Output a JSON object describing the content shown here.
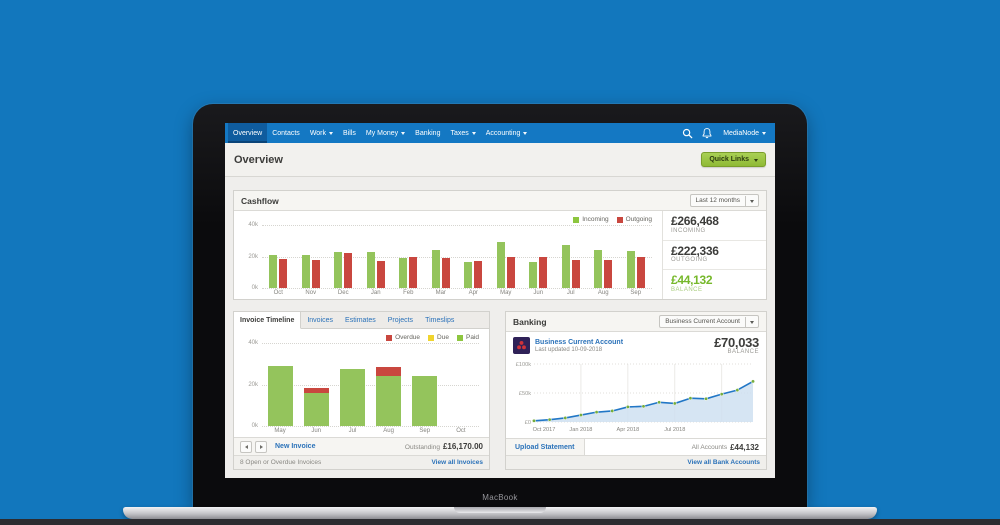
{
  "device": {
    "label": "MacBook"
  },
  "nav": {
    "items": [
      {
        "label": "Overview",
        "active": true
      },
      {
        "label": "Contacts"
      },
      {
        "label": "Work",
        "caret": true
      },
      {
        "label": "Bills"
      },
      {
        "label": "My Money",
        "caret": true
      },
      {
        "label": "Banking"
      },
      {
        "label": "Taxes",
        "caret": true
      },
      {
        "label": "Accounting",
        "caret": true
      }
    ],
    "account_menu": "MediaNode"
  },
  "page": {
    "title": "Overview",
    "quick_links_label": "Quick Links"
  },
  "cashflow": {
    "title": "Cashflow",
    "period_selector": "Last 12 months",
    "legend": [
      {
        "label": "Incoming",
        "color": "#8dc63f"
      },
      {
        "label": "Outgoing",
        "color": "#c9473f"
      }
    ],
    "summary": [
      {
        "value": "£266,468",
        "label": "INCOMING",
        "color": "#3c3c3a"
      },
      {
        "value": "£222,336",
        "label": "OUTGOING",
        "color": "#3c3c3a"
      },
      {
        "value": "£44,132",
        "label": "BALANCE",
        "color": "#76b82a"
      }
    ]
  },
  "invoice_panel": {
    "tabs": [
      {
        "label": "Invoice Timeline",
        "active": true
      },
      {
        "label": "Invoices"
      },
      {
        "label": "Estimates"
      },
      {
        "label": "Projects"
      },
      {
        "label": "Timeslips"
      }
    ],
    "legend": [
      {
        "label": "Overdue",
        "color": "#c9473f"
      },
      {
        "label": "Due",
        "color": "#f0d42e"
      },
      {
        "label": "Paid",
        "color": "#8dc63f"
      }
    ],
    "new_invoice_label": "New Invoice",
    "outstanding_label": "Outstanding",
    "outstanding_value": "£16,170.00",
    "footnote": "8 Open or Overdue Invoices",
    "view_all": "View all Invoices"
  },
  "banking": {
    "title": "Banking",
    "account_selector": "Business Current Account",
    "account_name": "Business Current Account",
    "last_updated": "Last updated 10-09-2018",
    "balance_value": "£70,033",
    "balance_label": "BALANCE",
    "upload_label": "Upload Statement",
    "all_accounts_label": "All Accounts",
    "all_accounts_value": "£44,132",
    "view_all": "View all Bank Accounts"
  },
  "chart_data": [
    {
      "id": "cashflow",
      "type": "bar",
      "title": "Cashflow (Last 12 months)",
      "categories": [
        "Oct",
        "Nov",
        "Dec",
        "Jan",
        "Feb",
        "Mar",
        "Apr",
        "May",
        "Jun",
        "Jul",
        "Aug",
        "Sep"
      ],
      "series": [
        {
          "name": "Incoming",
          "color": "#94c45c",
          "values": [
            21,
            21,
            23,
            23,
            19,
            24,
            16.5,
            29.5,
            16.5,
            27.5,
            24,
            23.5
          ]
        },
        {
          "name": "Outgoing",
          "color": "#c9473f",
          "values": [
            18.5,
            17.5,
            22,
            17,
            19.5,
            19,
            17,
            20,
            19.5,
            17.5,
            18,
            20
          ]
        }
      ],
      "ylabels": [
        "40k",
        "20k",
        "0k"
      ],
      "ylim": [
        0,
        40
      ],
      "unit": "GBP thousands",
      "legend_position": "top-right",
      "grid": "dotted-horizontal"
    },
    {
      "id": "invoice_timeline",
      "type": "stacked-bar",
      "title": "Invoice Timeline",
      "categories": [
        "May",
        "Jun",
        "Jul",
        "Aug",
        "Sep",
        "Oct"
      ],
      "series": [
        {
          "name": "Paid",
          "color": "#94c45c",
          "values": [
            29,
            16,
            27.5,
            24,
            24,
            0
          ]
        },
        {
          "name": "Overdue",
          "color": "#c9473f",
          "values": [
            0,
            2.5,
            0,
            4.5,
            0,
            0
          ]
        },
        {
          "name": "Due",
          "color": "#f0d42e",
          "values": [
            0,
            0,
            0,
            0,
            0,
            0
          ]
        }
      ],
      "ylabels": [
        "40k",
        "20k",
        "0k"
      ],
      "ylim": [
        0,
        40
      ],
      "unit": "GBP thousands",
      "legend_position": "top-right",
      "grid": "dotted-horizontal"
    },
    {
      "id": "bank_balance",
      "type": "area-line",
      "title": "Business Current Account balance",
      "x_ticks": [
        "Oct 2017",
        "Jan 2018",
        "Apr 2018",
        "Jul 2018"
      ],
      "values": [
        2,
        4,
        7,
        12,
        17,
        19,
        26,
        27,
        34,
        32,
        41,
        40,
        48,
        55,
        70
      ],
      "ylabels": [
        "£100k",
        "£50k",
        "£0"
      ],
      "ylim": [
        0,
        100
      ],
      "unit": "GBP thousands",
      "line_color": "#2277c6",
      "dot_color": "#76ad3e",
      "fill_color": "#cfe0f1",
      "grid": "dotted-horizontal-and-vertical-ticks"
    }
  ]
}
